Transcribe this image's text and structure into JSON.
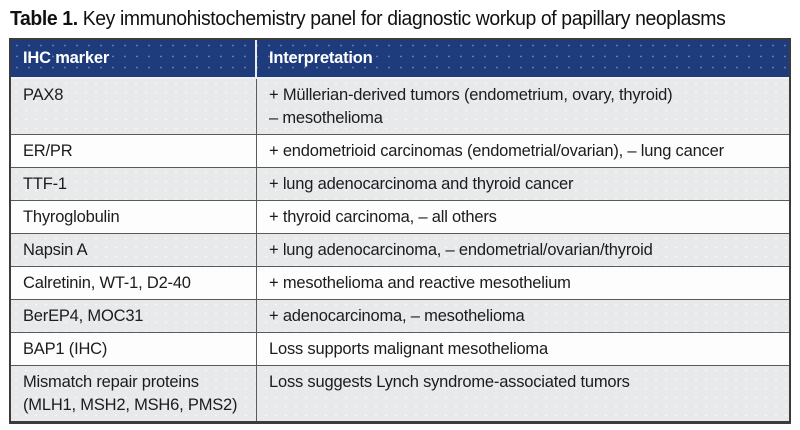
{
  "title": {
    "label": "Table 1.",
    "text": "Key immunohistochemistry panel for diagnostic workup of papillary neoplasms"
  },
  "table": {
    "columns": [
      "IHC marker",
      "Interpretation"
    ],
    "rows": [
      {
        "marker": "PAX8",
        "interpretation": "+ Müllerian-derived tumors (endometrium, ovary, thyroid)\n– mesothelioma"
      },
      {
        "marker": "ER/PR",
        "interpretation": "+ endometrioid carcinomas (endometrial/ovarian), – lung cancer"
      },
      {
        "marker": "TTF-1",
        "interpretation": "+ lung adenocarcinoma and thyroid cancer"
      },
      {
        "marker": "Thyroglobulin",
        "interpretation": "+ thyroid carcinoma, – all others"
      },
      {
        "marker": "Napsin A",
        "interpretation": "+ lung adenocarcinoma, – endometrial/ovarian/thyroid"
      },
      {
        "marker": "Calretinin, WT-1, D2-40",
        "interpretation": "+ mesothelioma and reactive mesothelium"
      },
      {
        "marker": "BerEP4, MOC31",
        "interpretation": "+ adenocarcinoma, – mesothelioma"
      },
      {
        "marker": "BAP1 (IHC)",
        "interpretation": "Loss supports malignant mesothelioma"
      },
      {
        "marker": "Mismatch repair proteins (MLH1, MSH2, MSH6, PMS2)",
        "interpretation": "Loss suggests Lynch syndrome-associated tumors"
      }
    ]
  },
  "colors": {
    "header_bg": "#1e3c7c",
    "row_alt_bg": "#e8e9ea",
    "border": "#5a5a5a",
    "header_text": "#ffffff"
  }
}
